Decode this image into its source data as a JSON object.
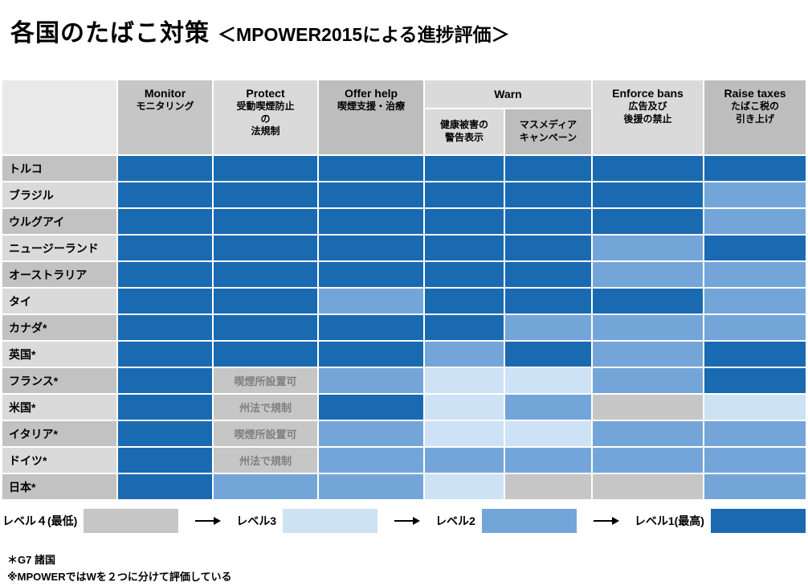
{
  "title": {
    "main": "各国のたばこ対策",
    "sub": "＜MPOWER2015による進捗評価＞"
  },
  "colors": {
    "level1": "#1a6ab2",
    "level2": "#74a5d8",
    "level3": "#cde2f4",
    "level4": "#c6c6c6",
    "header_light": "#dadada",
    "header_mid": "#c6c6c6",
    "header_dark": "#bdbdbd",
    "corner": "#e9e9e9",
    "row_label_odd": "#c2c2c2",
    "row_label_even": "#dadada",
    "note_text": "#808080"
  },
  "legend": [
    {
      "label": "レベル４(最低)",
      "level": 4
    },
    {
      "label": "レベル3",
      "level": 3
    },
    {
      "label": "レベル2",
      "level": 2
    },
    {
      "label": "レベル1(最高)",
      "level": 1
    }
  ],
  "footnotes": [
    "＊G7 諸国",
    "※MPOWERではWを２つに分けて評価している"
  ],
  "chart_data": {
    "type": "heatmap",
    "title": "各国のたばこ対策＜MPOWER2015による進捗評価＞",
    "value_meaning": "1=レベル1(最高), 2=レベル2, 3=レベル3, 4=レベル4(最低)",
    "header": [
      {
        "id": "monitor",
        "en": "Monitor",
        "ja": "モニタリング",
        "shade": "mid"
      },
      {
        "id": "protect",
        "en": "Protect",
        "ja": "受動喫煙防止\nの\n法規制",
        "shade": "light"
      },
      {
        "id": "offer-help",
        "en": "Offer help",
        "ja": "喫煙支援・治療",
        "shade": "dark"
      },
      {
        "id": "warn",
        "en": "Warn",
        "shade": "light",
        "sub": [
          {
            "id": "warn-health-labels",
            "ja": "健康被害の\n警告表示",
            "shade": "light"
          },
          {
            "id": "warn-mass-media",
            "ja": "マスメディア\nキャンペーン",
            "shade": "dark"
          }
        ]
      },
      {
        "id": "enforce-bans",
        "en": "Enforce bans",
        "ja": "広告及び\n後援の禁止",
        "shade": "light"
      },
      {
        "id": "raise-taxes",
        "en": "Raise taxes",
        "ja": "たばこ税の\n引き上げ",
        "shade": "dark"
      }
    ],
    "column_keys": [
      "Monitor モニタリング",
      "Protect 受動喫煙防止の法規制",
      "Offer help 喫煙支援・治療",
      "Warn 健康被害の警告表示",
      "Warn マスメディアキャンペーン",
      "Enforce bans 広告及び後援の禁止",
      "Raise taxes たばこ税の引き上げ"
    ],
    "rows": [
      {
        "country": "トルコ",
        "levels": [
          1,
          1,
          1,
          1,
          1,
          1,
          1
        ]
      },
      {
        "country": "ブラジル",
        "levels": [
          1,
          1,
          1,
          1,
          1,
          1,
          2
        ]
      },
      {
        "country": "ウルグアイ",
        "levels": [
          1,
          1,
          1,
          1,
          1,
          1,
          2
        ]
      },
      {
        "country": "ニュージーランド",
        "levels": [
          1,
          1,
          1,
          1,
          1,
          2,
          1
        ]
      },
      {
        "country": "オーストラリア",
        "levels": [
          1,
          1,
          1,
          1,
          1,
          2,
          2
        ]
      },
      {
        "country": "タイ",
        "levels": [
          1,
          1,
          2,
          1,
          1,
          1,
          2
        ]
      },
      {
        "country": "カナダ*",
        "levels": [
          1,
          1,
          1,
          1,
          2,
          2,
          2
        ]
      },
      {
        "country": "英国*",
        "levels": [
          1,
          1,
          1,
          2,
          1,
          2,
          1
        ]
      },
      {
        "country": "フランス*",
        "levels": [
          1,
          4,
          2,
          3,
          3,
          2,
          1
        ],
        "notes": {
          "1": "喫煙所設置可"
        }
      },
      {
        "country": "米国*",
        "levels": [
          1,
          4,
          1,
          3,
          2,
          4,
          3
        ],
        "notes": {
          "1": "州法で規制"
        }
      },
      {
        "country": "イタリア*",
        "levels": [
          1,
          4,
          2,
          3,
          3,
          2,
          2
        ],
        "notes": {
          "1": "喫煙所設置可"
        }
      },
      {
        "country": "ドイツ*",
        "levels": [
          1,
          4,
          2,
          2,
          2,
          2,
          2
        ],
        "notes": {
          "1": "州法で規制"
        }
      },
      {
        "country": "日本*",
        "levels": [
          1,
          2,
          2,
          3,
          4,
          4,
          2
        ]
      }
    ]
  }
}
